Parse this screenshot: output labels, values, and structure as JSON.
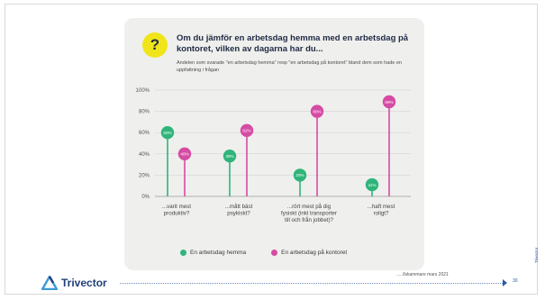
{
  "question": {
    "badge": "?",
    "title": "Om du jämför en arbetsdag hemma med en arbetsdag på kontoret, vilken av dagarna har du...",
    "subtitle": "Andelen som svarade \"en arbetsdag hemma\" resp \"en arbetsdag på kontoret\" bland dem som hade en uppfattning i frågan"
  },
  "chart_data": {
    "type": "lollipop",
    "ylim": [
      0,
      100
    ],
    "yticks": [
      "0%",
      "20%",
      "40%",
      "60%",
      "80%",
      "100%"
    ],
    "grid": true,
    "categories": [
      [
        "...varit mest",
        "produktiv?"
      ],
      [
        "...mått bäst",
        "psykiskt?"
      ],
      [
        "...rört mest på dig",
        "fysiskt (inkl transporter",
        "till och från jobbet)?"
      ],
      [
        "...haft mest",
        "roligt?"
      ]
    ],
    "series": [
      {
        "name": "En arbetsdag hemma",
        "color": "#2fb57a",
        "values": [
          60,
          38,
          20,
          11
        ],
        "labels": [
          "60%",
          "38%",
          "20%",
          "11%"
        ]
      },
      {
        "name": "En arbetsdag på kontoret",
        "color": "#d64ba4",
        "values": [
          40,
          62,
          80,
          89
        ],
        "labels": [
          "40%",
          "62%",
          "80%",
          "89%"
        ]
      }
    ],
    "legend_position": "bottom"
  },
  "footer": {
    "logo": "Trivector",
    "source": "...../lskammare mars 2021",
    "page": "30",
    "side_brand": "Trivector"
  }
}
